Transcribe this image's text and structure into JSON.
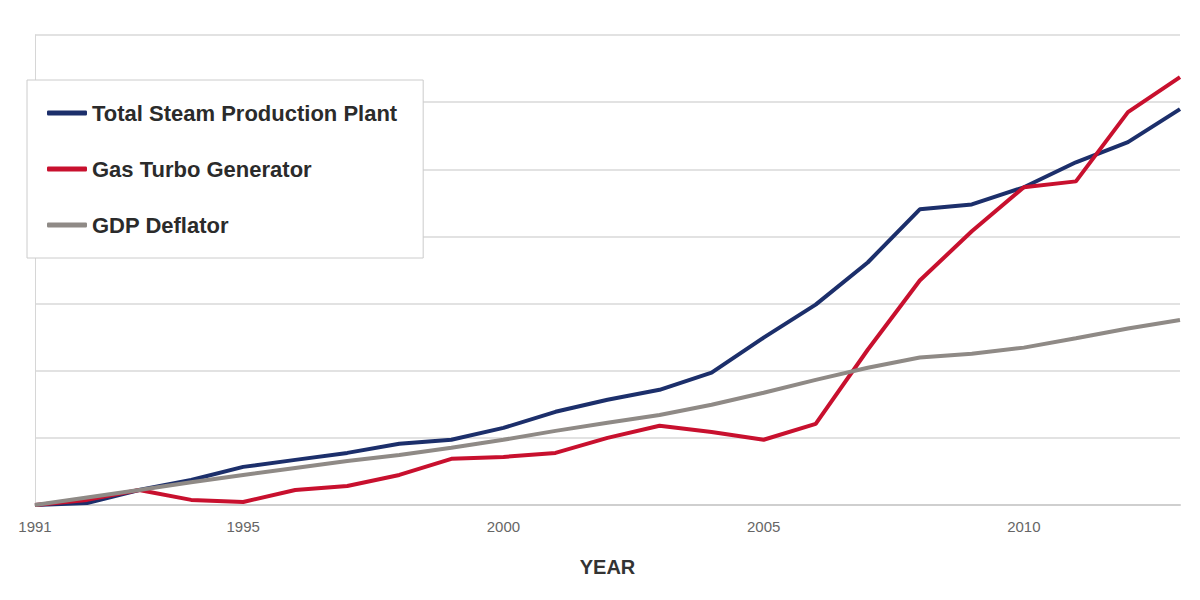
{
  "chart_data": {
    "type": "line",
    "x_label": "YEAR",
    "x": [
      1991,
      1992,
      1993,
      1994,
      1995,
      1996,
      1997,
      1998,
      1999,
      2000,
      2001,
      2002,
      2003,
      2004,
      2005,
      2006,
      2007,
      2008,
      2009,
      2010,
      2011,
      2012,
      2013
    ],
    "series": [
      {
        "name": "Total Steam Production Plant",
        "color": "#1c2f6b",
        "values": [
          0,
          0.7,
          5.6,
          9.3,
          14.2,
          16.8,
          19.4,
          22.8,
          24.3,
          28.7,
          34.7,
          39.2,
          42.9,
          49.3,
          62.3,
          74.6,
          90.3,
          110.1,
          111.9,
          118.3,
          127.6,
          135.1,
          147.4
        ]
      },
      {
        "name": "Gas Turbo Generator",
        "color": "#c8102e",
        "values": [
          0,
          1.9,
          5.6,
          1.9,
          1.1,
          5.6,
          7.1,
          11.2,
          17.2,
          17.9,
          19.4,
          25.0,
          29.5,
          27.2,
          24.3,
          30.2,
          57.8,
          83.6,
          101.9,
          118.3,
          120.5,
          146.3,
          159.3
        ]
      },
      {
        "name": "GDP Deflator",
        "color": "#8f8a86",
        "values": [
          0,
          2.8,
          5.6,
          8.5,
          11.2,
          13.8,
          16.4,
          18.6,
          21.3,
          24.3,
          27.6,
          30.6,
          33.5,
          37.3,
          41.8,
          46.6,
          51.1,
          54.9,
          56.3,
          58.6,
          62.1,
          65.7,
          68.9
        ]
      }
    ],
    "xlim": [
      1991,
      2013
    ],
    "xticks": [
      1991,
      1995,
      2000,
      2005,
      2010
    ],
    "ylim": [
      0,
      175
    ],
    "yticks": [
      0,
      25,
      50,
      75,
      100,
      125,
      150,
      175
    ],
    "grid": true,
    "legend": "top-left",
    "tick_labels": "x"
  }
}
